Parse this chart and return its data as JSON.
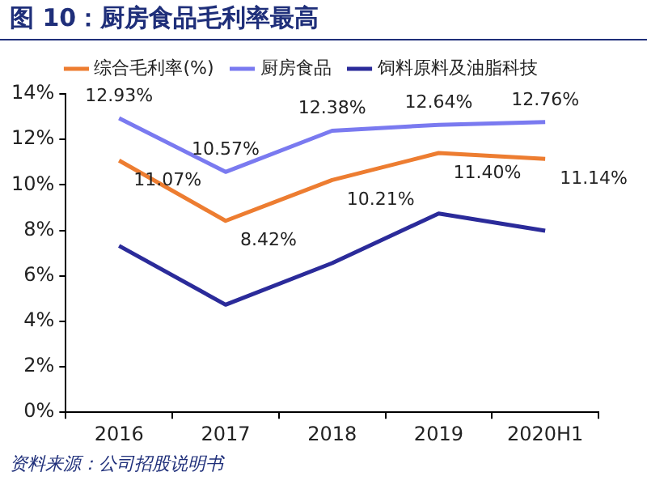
{
  "chart_data": {
    "type": "line",
    "title": "图 10：厨房食品毛利率最高",
    "categories": [
      "2016",
      "2017",
      "2018",
      "2019",
      "2020H1"
    ],
    "series": [
      {
        "name": "综合毛利率(%)",
        "color": "#ed7d31",
        "values": [
          11.07,
          8.42,
          10.21,
          11.4,
          11.14
        ],
        "value_labels": [
          "11.07%",
          "8.42%",
          "10.21%",
          "11.40%",
          "11.14%"
        ]
      },
      {
        "name": "厨房食品",
        "color": "#7a7af0",
        "values": [
          12.93,
          10.57,
          12.38,
          12.64,
          12.76
        ],
        "value_labels": [
          "12.93%",
          "10.57%",
          "12.38%",
          "12.64%",
          "12.76%"
        ]
      },
      {
        "name": "饲料原料及油脂科技",
        "color": "#2b2b9a",
        "values": [
          7.32,
          4.73,
          6.56,
          8.74,
          7.98
        ]
      }
    ],
    "ylim": [
      0,
      14
    ],
    "yticks": [
      {
        "value": 0,
        "label": "0%"
      },
      {
        "value": 2,
        "label": "2%"
      },
      {
        "value": 4,
        "label": "4%"
      },
      {
        "value": 6,
        "label": "6%"
      },
      {
        "value": 8,
        "label": "8%"
      },
      {
        "value": 10,
        "label": "10%"
      },
      {
        "value": 12,
        "label": "12%"
      },
      {
        "value": 14,
        "label": "14%"
      }
    ],
    "grid": false,
    "legend": "top",
    "marker": "none",
    "line_style": "solid",
    "annotations": [
      "资料来源：公司招股说明书"
    ]
  }
}
